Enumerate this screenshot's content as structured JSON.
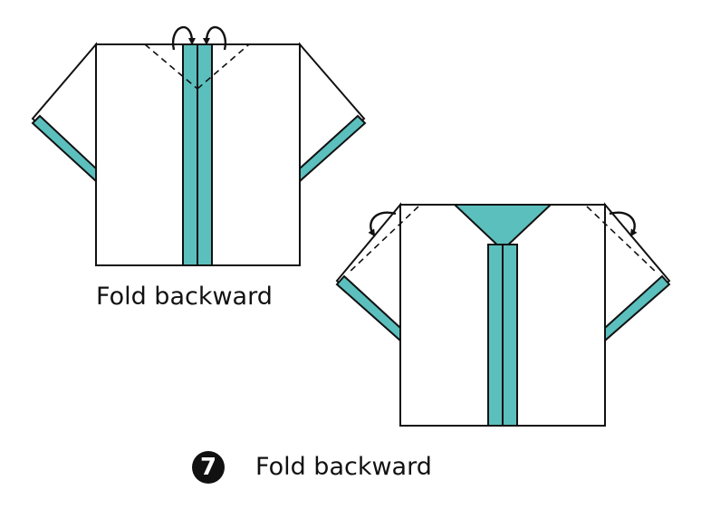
{
  "colors": {
    "accent": "#5bbfbd",
    "outline": "#111111",
    "paper": "#ffffff"
  },
  "icons": {
    "step_badge": "number-seven-badge",
    "fold_arrow": "curved-fold-arrow-icon"
  },
  "steps": [
    {
      "caption": "Fold backward"
    },
    {
      "number": "7",
      "caption": "Fold backward"
    }
  ]
}
